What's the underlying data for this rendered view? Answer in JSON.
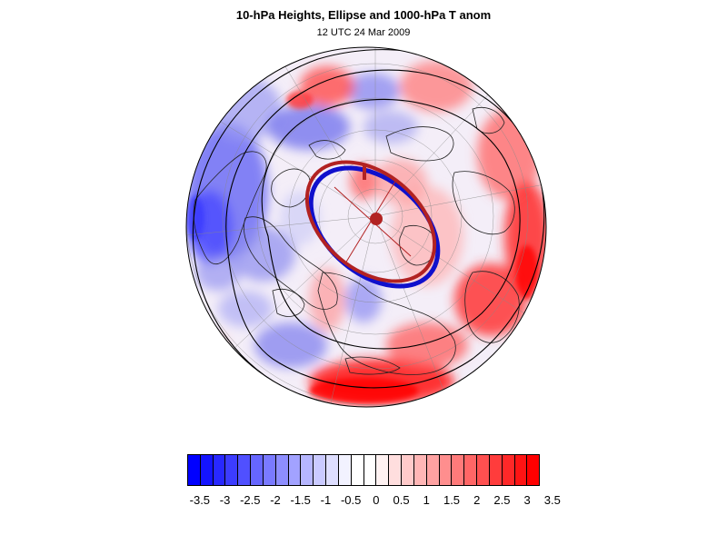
{
  "title": "10-hPa Heights, Ellipse and 1000-hPa T anom",
  "subtitle": "12 UTC 24 Mar 2009",
  "colors": {
    "cold": "#0000ff",
    "warm": "#ff0000",
    "ellipse_observed": "#0000cc",
    "ellipse_fit": "#b22222",
    "contour": "#000000",
    "coastline": "#222222"
  },
  "colorbar": {
    "tick_labels": [
      "-3.5",
      "-3",
      "-2.5",
      "-2",
      "-1.5",
      "-1",
      "-0.5",
      "0",
      "0.5",
      "1",
      "1.5",
      "2",
      "2.5",
      "3",
      "3.5"
    ],
    "swatches": [
      "#0000ff",
      "#1414ff",
      "#2828ff",
      "#3c3cff",
      "#5050ff",
      "#6666ff",
      "#7a7aff",
      "#8e8eff",
      "#a2a2ff",
      "#b6b6ff",
      "#cacaff",
      "#dedeff",
      "#f2f2ff",
      "#ffffff",
      "#ffffff",
      "#fff2f2",
      "#ffdede",
      "#ffcaca",
      "#ffb6b6",
      "#ffa2a2",
      "#ff8e8e",
      "#ff7a7a",
      "#ff6666",
      "#ff5050",
      "#ff3c3c",
      "#ff2828",
      "#ff1414",
      "#ff0000"
    ]
  }
}
